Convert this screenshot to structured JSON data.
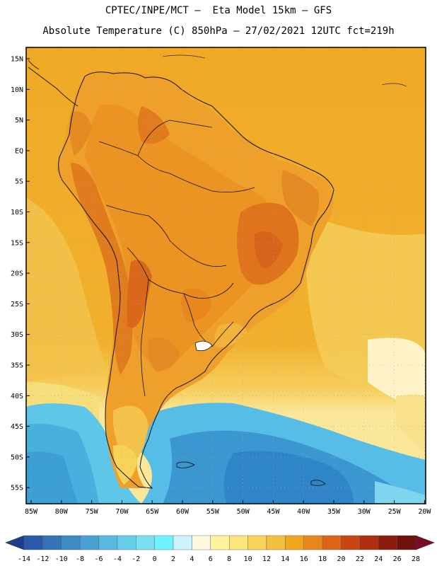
{
  "header": {
    "line1": "CPTEC/INPE/MCT –  Eta Model 15km – GFS",
    "line2": "Absolute Temperature (C) 850hPa – 27/02/2021 12UTC fct=219h"
  },
  "axes": {
    "lat_labels": [
      "15N",
      "10N",
      "5N",
      "EQ",
      "5S",
      "10S",
      "15S",
      "20S",
      "25S",
      "30S",
      "35S",
      "40S",
      "45S",
      "50S",
      "55S"
    ],
    "lon_labels": [
      "85W",
      "80W",
      "75W",
      "70W",
      "65W",
      "60W",
      "55W",
      "50W",
      "45W",
      "40W",
      "35W",
      "30W",
      "25W",
      "20W"
    ]
  },
  "colorbar": {
    "labels": [
      "-14",
      "-12",
      "-10",
      "-8",
      "-6",
      "-4",
      "-2",
      "0",
      "2",
      "4",
      "6",
      "8",
      "10",
      "12",
      "14",
      "16",
      "18",
      "20",
      "22",
      "24",
      "26",
      "28"
    ],
    "colors": [
      "#1f3d8c",
      "#2a5aa8",
      "#3473b7",
      "#3f8bc6",
      "#4aa2d4",
      "#57b8e0",
      "#66cde9",
      "#78e0f1",
      "#6ff4ff",
      "#cdf3ff",
      "#fff8e0",
      "#fff3a0",
      "#fbe67a",
      "#f7d35a",
      "#f3bf3e",
      "#f0a51f",
      "#e8871b",
      "#df6418",
      "#c84514",
      "#ad2f10",
      "#8c1c0e",
      "#6e100c",
      "#7a0a28"
    ]
  },
  "legend_colors": {
    "ocean_warm": "#f4d46a",
    "ocean_base": "#f1ae27",
    "land_warm": "#ea931f",
    "hot_core": "#d6641b",
    "cold_sea": "#4cb6e3",
    "deep_cold": "#2f86c6"
  }
}
